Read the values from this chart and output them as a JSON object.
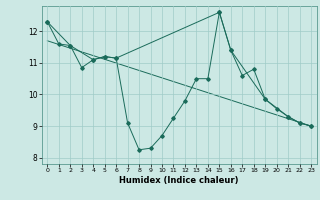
{
  "xlabel": "Humidex (Indice chaleur)",
  "bg_color": "#cce8e4",
  "line_color": "#1a6b5a",
  "grid_color": "#a0ccc8",
  "xlim": [
    -0.5,
    23.5
  ],
  "ylim": [
    7.8,
    12.8
  ],
  "xticks": [
    0,
    1,
    2,
    3,
    4,
    5,
    6,
    7,
    8,
    9,
    10,
    11,
    12,
    13,
    14,
    15,
    16,
    17,
    18,
    19,
    20,
    21,
    22,
    23
  ],
  "yticks": [
    8,
    9,
    10,
    11,
    12
  ],
  "series1_x": [
    0,
    1,
    2,
    3,
    4,
    5,
    6,
    7,
    8,
    9,
    10,
    11,
    12,
    13,
    14,
    15,
    16,
    17,
    18,
    19,
    20,
    21,
    22,
    23
  ],
  "series1_y": [
    12.3,
    11.6,
    11.55,
    10.85,
    11.1,
    11.2,
    11.15,
    9.1,
    8.25,
    8.3,
    8.7,
    9.25,
    9.8,
    10.5,
    10.5,
    12.6,
    11.4,
    10.6,
    10.8,
    9.85,
    9.55,
    9.3,
    9.1,
    9.0
  ],
  "series2_x": [
    0,
    2,
    4,
    5,
    6,
    15,
    16,
    19,
    21,
    22,
    23
  ],
  "series2_y": [
    12.3,
    11.55,
    11.1,
    11.2,
    11.15,
    12.6,
    11.4,
    9.85,
    9.3,
    9.1,
    9.0
  ],
  "trend_x": [
    0,
    23
  ],
  "trend_y": [
    11.7,
    9.0
  ]
}
